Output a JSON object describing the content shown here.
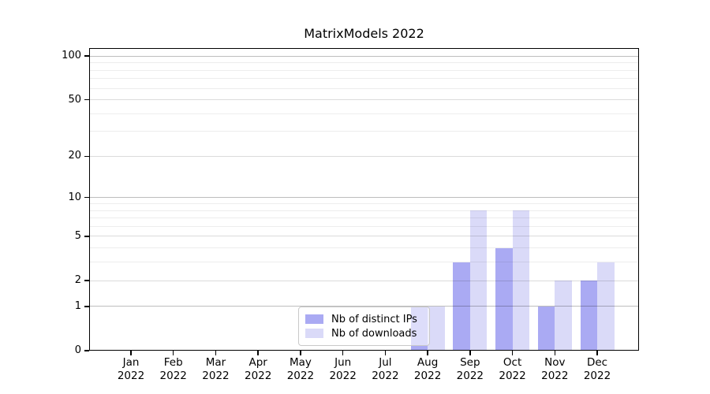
{
  "chart_data": {
    "type": "bar",
    "title": "MatrixModels 2022",
    "categories": [
      "Jan 2022",
      "Feb 2022",
      "Mar 2022",
      "Apr 2022",
      "May 2022",
      "Jun 2022",
      "Jul 2022",
      "Aug 2022",
      "Sep 2022",
      "Oct 2022",
      "Nov 2022",
      "Dec 2022"
    ],
    "series": [
      {
        "name": "Nb of distinct IPs",
        "color": "#aaaaf3",
        "values": [
          0,
          0,
          0,
          0,
          0,
          0,
          0,
          1,
          3,
          4,
          1,
          2
        ]
      },
      {
        "name": "Nb of downloads",
        "color": "#dadaf8",
        "values": [
          0,
          0,
          0,
          0,
          0,
          0,
          0,
          1,
          8,
          8,
          2,
          3
        ]
      }
    ],
    "y_axis": {
      "scale": "log1p",
      "tick_values": [
        0,
        1,
        2,
        5,
        10,
        20,
        50,
        100
      ],
      "decade_gridline_values": [
        1,
        10,
        100
      ],
      "major_gridline_values": [
        2,
        5,
        20,
        50
      ],
      "minor_gridline_values": [
        3,
        4,
        6,
        7,
        8,
        9,
        30,
        40,
        60,
        70,
        80,
        90
      ],
      "range": [
        0,
        114
      ]
    },
    "xlabel": "",
    "ylabel": "",
    "grid": true,
    "legend_position": "lower center",
    "background_color": "#ffffff",
    "frame_color": "#000000"
  }
}
